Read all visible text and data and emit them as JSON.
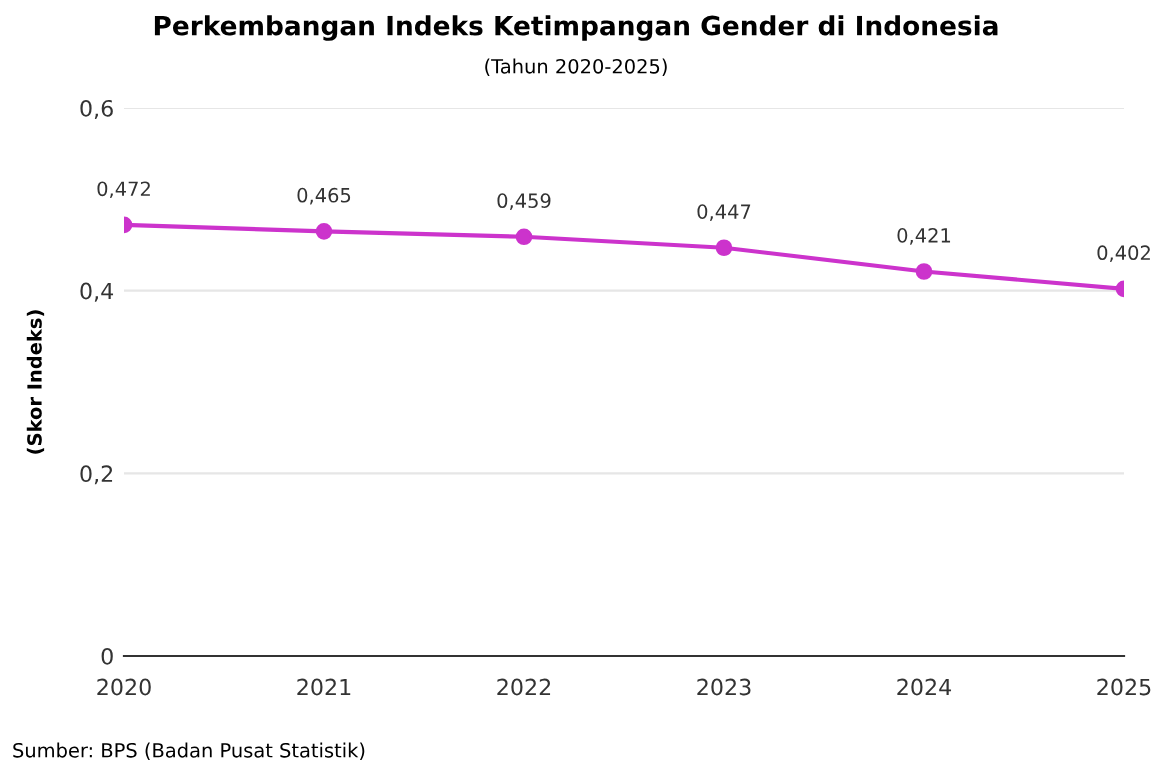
{
  "chart_data": {
    "type": "line",
    "title": "Perkembangan Indeks Ketimpangan Gender di Indonesia",
    "subtitle": "(Tahun 2020-2025)",
    "ylabel": "(Skor Indeks)",
    "x": [
      2020,
      2021,
      2022,
      2023,
      2024,
      2025
    ],
    "series": [
      {
        "color": "#cc33cc",
        "values": [
          0.472,
          0.465,
          0.459,
          0.447,
          0.421,
          0.402
        ],
        "value_labels": [
          "0,472",
          "0,465",
          "0,459",
          "0,447",
          "0,421",
          "0,402"
        ]
      }
    ],
    "xlim": [
      2020,
      2025
    ],
    "xticks": [
      2020,
      2021,
      2022,
      2023,
      2024,
      2025
    ],
    "ylim": [
      0,
      0.6
    ],
    "yticks": [
      0,
      {
        "value": 0.2,
        "label": "0,2"
      },
      {
        "value": 0.4,
        "label": "0,4"
      },
      {
        "value": 0.6,
        "label": "0,6"
      }
    ],
    "grid": "y",
    "marker": "circle",
    "line_style": "solid",
    "legend": false,
    "annotations": [
      "Sumber: BPS (Badan Pusat Statistik)"
    ]
  }
}
